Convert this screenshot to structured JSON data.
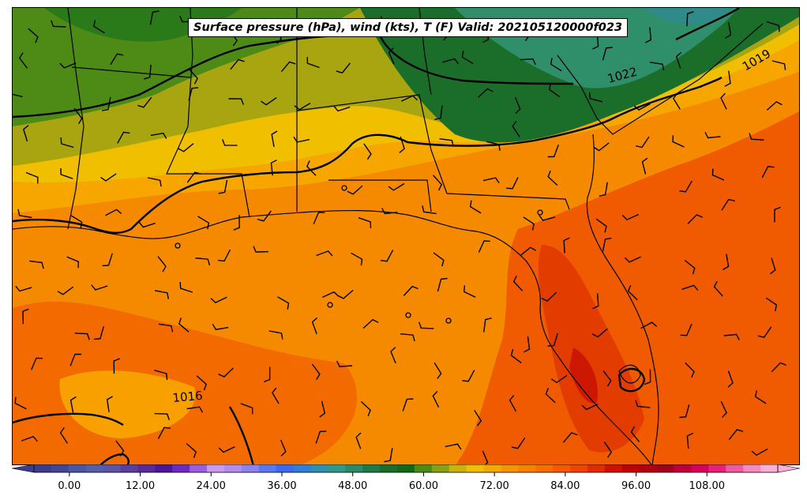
{
  "title": "Surface pressure (hPa), wind (kts), T (F) Valid: 202105120000f023",
  "isobar_labels": [
    "1022",
    "1019",
    "1016"
  ],
  "colorbar": {
    "min": -6,
    "max": 120,
    "step": 3,
    "tick_labels": [
      "0.00",
      "12.00",
      "24.00",
      "36.00",
      "48.00",
      "60.00",
      "72.00",
      "84.00",
      "96.00",
      "108.00"
    ],
    "colors": [
      "#3b3b8f",
      "#40479a",
      "#4a56a6",
      "#555fa8",
      "#5a55a6",
      "#5a3fa0",
      "#5a2a9a",
      "#4d159a",
      "#6a2bc4",
      "#9a5ee0",
      "#c79cf0",
      "#b08ef0",
      "#8c82f0",
      "#5a78f0",
      "#3b6af0",
      "#2e7fd8",
      "#2e8fb0",
      "#2f9a8a",
      "#2a8a6a",
      "#1f7a4a",
      "#1b6e2a",
      "#0f6a14",
      "#4d8b16",
      "#8aa014",
      "#c8b40a",
      "#f0c000",
      "#f5a800",
      "#f89400",
      "#fb8200",
      "#fc6e00",
      "#f85800",
      "#f24400",
      "#e42a00",
      "#d01000",
      "#c00000",
      "#b00012",
      "#a0001e",
      "#c0003a",
      "#d8005a",
      "#e8207a",
      "#f05aa0",
      "#f88ac2",
      "#fcb0d8"
    ],
    "extend_below_color": "#3b3b8f",
    "extend_above_color": "#fcb0d8"
  },
  "colors": {
    "land_outline": "#000000",
    "isobar": "#000000"
  }
}
